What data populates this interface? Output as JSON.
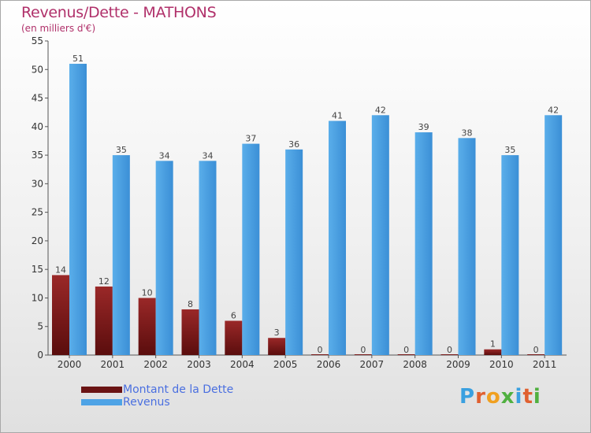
{
  "chart_data": {
    "type": "bar",
    "title": "Revenus/Dette - MATHONS",
    "subtitle": "(en milliers d'€)",
    "categories": [
      "2000",
      "2001",
      "2002",
      "2003",
      "2004",
      "2005",
      "2006",
      "2007",
      "2008",
      "2009",
      "2010",
      "2011"
    ],
    "series": [
      {
        "name": "Montant de la Dette",
        "color": "#7a1a1a",
        "values": [
          14,
          12,
          10,
          8,
          6,
          3,
          0,
          0,
          0,
          0,
          1,
          0
        ]
      },
      {
        "name": "Revenus",
        "color": "#4ea3e6",
        "values": [
          51,
          35,
          34,
          34,
          37,
          36,
          41,
          42,
          39,
          38,
          35,
          42
        ]
      }
    ],
    "ylim": [
      0,
      55
    ],
    "yticks": [
      0,
      5,
      10,
      15,
      20,
      25,
      30,
      35,
      40,
      45,
      50,
      55
    ],
    "grid": false,
    "legend_position": "bottom-left"
  },
  "brand": {
    "letters": [
      "P",
      "r",
      "o",
      "x",
      "i",
      "t",
      "i"
    ],
    "colors": [
      "#3aa0e0",
      "#e06030",
      "#f0a020",
      "#50b040",
      "#3aa0e0",
      "#e06030",
      "#50b040"
    ]
  }
}
